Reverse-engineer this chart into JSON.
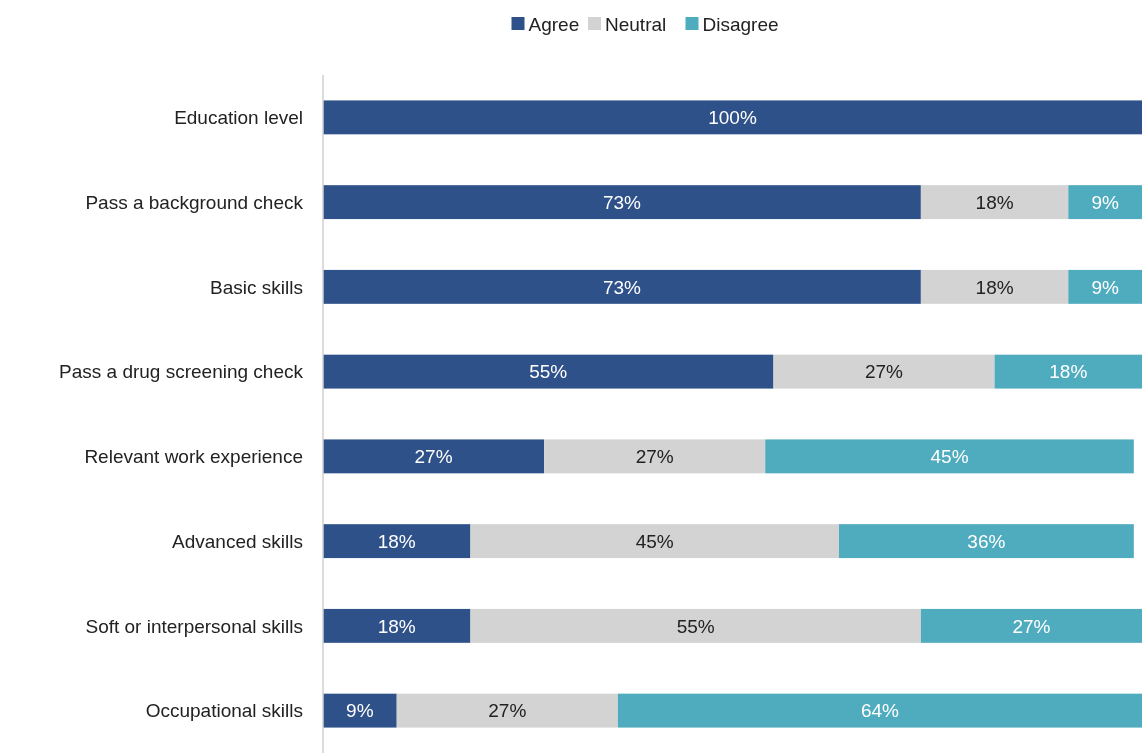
{
  "chart_data": {
    "type": "bar",
    "orientation": "horizontal",
    "stacked": true,
    "legend": "top",
    "xlim": [
      0,
      100
    ],
    "tick_labels": "y",
    "categories": [
      "Education level",
      "Pass a background check",
      "Basic skills",
      "Pass a drug screening check",
      "Relevant work experience",
      "Advanced skills",
      "Soft or interpersonal skills",
      "Occupational skills"
    ],
    "series": [
      {
        "name": "Agree",
        "color": "#2e5189",
        "values": [
          100,
          73,
          73,
          55,
          27,
          18,
          18,
          9
        ],
        "value_labels": [
          "100%",
          "73%",
          "73%",
          "55%",
          "27%",
          "18%",
          "18%",
          "9%"
        ]
      },
      {
        "name": "Neutral",
        "color": "#d3d3d3",
        "values": [
          0,
          18,
          18,
          27,
          27,
          45,
          55,
          27
        ],
        "value_labels": [
          null,
          "18%",
          "18%",
          "27%",
          "27%",
          "45%",
          "55%",
          "27%"
        ]
      },
      {
        "name": "Disagree",
        "color": "#4fabbe",
        "values": [
          0,
          9,
          9,
          18,
          45,
          36,
          27,
          64
        ],
        "value_labels": [
          null,
          "9%",
          "9%",
          "18%",
          "45%",
          "36%",
          "27%",
          "64%"
        ]
      }
    ]
  }
}
